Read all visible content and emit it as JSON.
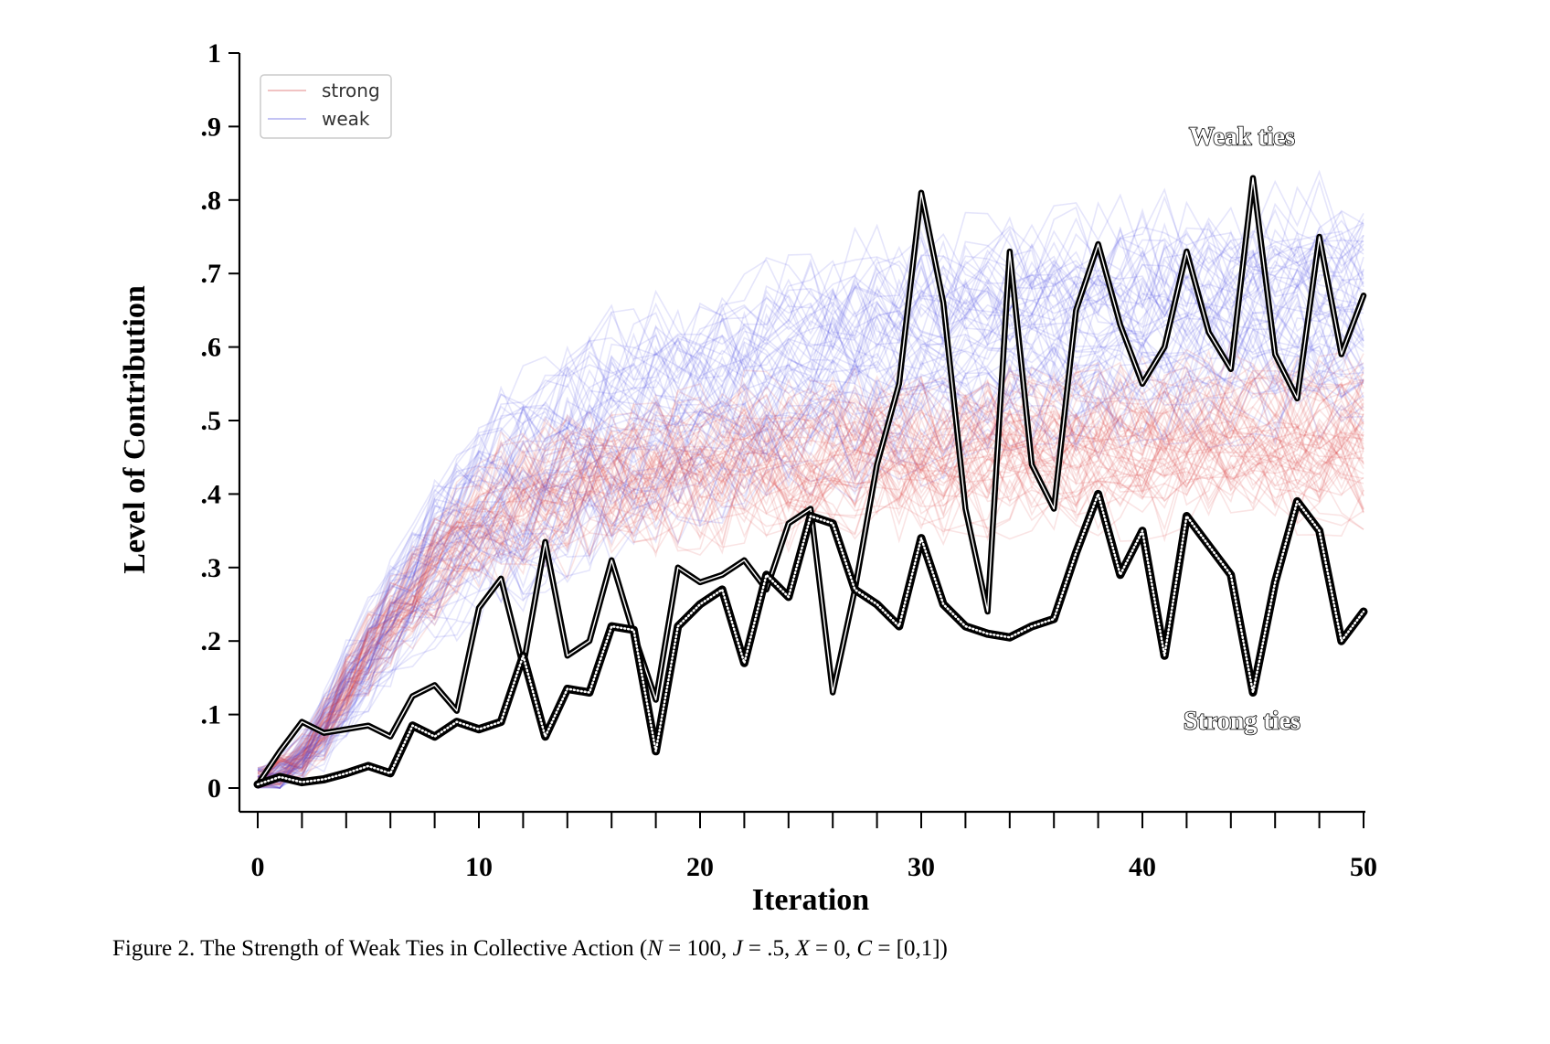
{
  "chart_data": {
    "type": "line",
    "xlabel": "Iteration",
    "ylabel": "Level of Contribution",
    "xlim": [
      0,
      50
    ],
    "ylim": [
      0,
      1
    ],
    "x_ticks": [
      0,
      10,
      20,
      30,
      40,
      50
    ],
    "x_tick_labels": [
      "0",
      "10",
      "20",
      "30",
      "40",
      "50"
    ],
    "y_ticks": [
      0,
      0.1,
      0.2,
      0.3,
      0.4,
      0.5,
      0.6,
      0.7,
      0.8,
      0.9,
      1
    ],
    "y_tick_labels": [
      "0",
      ".1",
      ".2",
      ".3",
      ".4",
      ".5",
      ".6",
      ".7",
      ".8",
      ".9",
      "1"
    ],
    "legend": {
      "position": "top-left",
      "entries": [
        {
          "label": "strong",
          "color": "#e07a7a"
        },
        {
          "label": "weak",
          "color": "#7a7ae6"
        }
      ]
    },
    "ensemble": {
      "strong": {
        "color": "#d94040",
        "alpha": 0.14,
        "count": 60,
        "mean": [
          0.01,
          0.02,
          0.04,
          0.08,
          0.13,
          0.18,
          0.22,
          0.26,
          0.3,
          0.33,
          0.35,
          0.37,
          0.38,
          0.39,
          0.4,
          0.41,
          0.41,
          0.42,
          0.42,
          0.43,
          0.43,
          0.43,
          0.44,
          0.44,
          0.44,
          0.44,
          0.45,
          0.45,
          0.45,
          0.45,
          0.45,
          0.45,
          0.46,
          0.46,
          0.46,
          0.46,
          0.46,
          0.46,
          0.46,
          0.46,
          0.46,
          0.46,
          0.47,
          0.47,
          0.47,
          0.47,
          0.47,
          0.47,
          0.47,
          0.47,
          0.47
        ],
        "spread": 0.06
      },
      "weak": {
        "color": "#4848e0",
        "alpha": 0.14,
        "count": 60,
        "mean": [
          0.01,
          0.02,
          0.04,
          0.08,
          0.13,
          0.18,
          0.23,
          0.27,
          0.31,
          0.34,
          0.37,
          0.39,
          0.41,
          0.43,
          0.45,
          0.46,
          0.48,
          0.49,
          0.5,
          0.51,
          0.52,
          0.53,
          0.54,
          0.55,
          0.56,
          0.57,
          0.57,
          0.58,
          0.59,
          0.59,
          0.6,
          0.6,
          0.61,
          0.61,
          0.61,
          0.62,
          0.62,
          0.62,
          0.63,
          0.63,
          0.63,
          0.63,
          0.64,
          0.64,
          0.64,
          0.64,
          0.64,
          0.65,
          0.65,
          0.65,
          0.65
        ],
        "spread": 0.12
      }
    },
    "series": [
      {
        "name": "Weak ties",
        "line": "thin-black",
        "x": [
          0,
          1,
          2,
          3,
          4,
          5,
          6,
          7,
          8,
          9,
          10,
          11,
          12,
          13,
          14,
          15,
          16,
          17,
          18,
          19,
          20,
          21,
          22,
          23,
          24,
          25,
          26,
          27,
          28,
          29,
          30,
          31,
          32,
          33,
          34,
          35,
          36,
          37,
          38,
          39,
          40,
          41,
          42,
          43,
          44,
          45,
          46,
          47,
          48,
          49,
          50
        ],
        "y": [
          0.005,
          0.05,
          0.09,
          0.075,
          0.08,
          0.085,
          0.07,
          0.125,
          0.14,
          0.105,
          0.245,
          0.285,
          0.165,
          0.335,
          0.18,
          0.2,
          0.31,
          0.21,
          0.12,
          0.3,
          0.28,
          0.29,
          0.31,
          0.27,
          0.36,
          0.38,
          0.13,
          0.27,
          0.44,
          0.55,
          0.81,
          0.66,
          0.38,
          0.24,
          0.73,
          0.44,
          0.38,
          0.65,
          0.74,
          0.63,
          0.55,
          0.6,
          0.73,
          0.62,
          0.57,
          0.83,
          0.59,
          0.53,
          0.75,
          0.59,
          0.67
        ]
      },
      {
        "name": "Strong ties",
        "line": "thick-black",
        "x": [
          0,
          1,
          2,
          3,
          4,
          5,
          6,
          7,
          8,
          9,
          10,
          11,
          12,
          13,
          14,
          15,
          16,
          17,
          18,
          19,
          20,
          21,
          22,
          23,
          24,
          25,
          26,
          27,
          28,
          29,
          30,
          31,
          32,
          33,
          34,
          35,
          36,
          37,
          38,
          39,
          40,
          41,
          42,
          43,
          44,
          45,
          46,
          47,
          48,
          49,
          50
        ],
        "y": [
          0.005,
          0.015,
          0.008,
          0.012,
          0.02,
          0.03,
          0.02,
          0.085,
          0.07,
          0.09,
          0.08,
          0.09,
          0.18,
          0.07,
          0.135,
          0.13,
          0.22,
          0.215,
          0.05,
          0.22,
          0.25,
          0.27,
          0.17,
          0.29,
          0.26,
          0.37,
          0.36,
          0.27,
          0.25,
          0.22,
          0.34,
          0.25,
          0.22,
          0.21,
          0.205,
          0.22,
          0.23,
          0.32,
          0.4,
          0.29,
          0.35,
          0.18,
          0.37,
          0.33,
          0.29,
          0.13,
          0.28,
          0.39,
          0.35,
          0.2,
          0.24
        ]
      }
    ],
    "annotations": [
      {
        "text": "Weak ties",
        "x": 44.5,
        "y": 0.875
      },
      {
        "text": "Strong ties",
        "x": 44.5,
        "y": 0.08
      }
    ]
  },
  "caption": {
    "prefix": "Figure 2.  The Strength of Weak Ties in Collective Action (",
    "n_var": "N",
    "n_val": " = 100, ",
    "j_var": "J",
    "j_val": " = .5, ",
    "x_var": "X",
    "x_val": " = 0, ",
    "c_var": "C",
    "c_val": " = [0,1])"
  }
}
